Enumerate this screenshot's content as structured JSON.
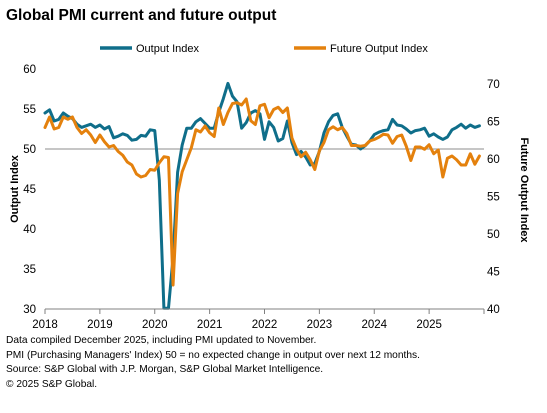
{
  "chart_data": {
    "type": "line",
    "title": "Global PMI current and future output",
    "ylabel": "Output Index",
    "y2label": "Future Output Index",
    "ylim": [
      30,
      60
    ],
    "y2lim": [
      40,
      72
    ],
    "yticks": [
      30,
      35,
      40,
      45,
      50,
      55,
      60
    ],
    "y2ticks": [
      40,
      45,
      50,
      55,
      60,
      65,
      70
    ],
    "xlim": [
      "2018-01",
      "2026-01"
    ],
    "xticks": [
      "2018",
      "2019",
      "2020",
      "2021",
      "2022",
      "2023",
      "2024",
      "2025"
    ],
    "reference_line": {
      "axis": "y",
      "value": 50
    },
    "grid": false,
    "legend": "top",
    "series": [
      {
        "name": "Output Index",
        "axis": "left",
        "color": "#0f6e8a",
        "x_start": "2018-01",
        "frequency": "monthly",
        "values": [
          54.5,
          54.9,
          53.5,
          53.7,
          54.5,
          54.1,
          53.8,
          53.1,
          52.7,
          52.9,
          53.1,
          52.7,
          53.0,
          52.5,
          52.8,
          51.4,
          51.6,
          51.9,
          51.7,
          51.1,
          51.2,
          51.7,
          51.6,
          52.4,
          52.3,
          46.1,
          30.1,
          30.1,
          36.4,
          47.1,
          50.5,
          52.6,
          52.6,
          53.4,
          53.8,
          53.2,
          52.6,
          52.6,
          54.6,
          56.3,
          58.2,
          56.6,
          55.9,
          52.6,
          53.3,
          54.5,
          54.8,
          54.4,
          51.2,
          53.4,
          52.7,
          51.0,
          51.3,
          53.5,
          50.8,
          49.3,
          49.7,
          49.0,
          48.0,
          48.2,
          49.7,
          52.0,
          53.4,
          54.2,
          54.4,
          52.7,
          51.6,
          50.6,
          50.5,
          50.0,
          50.4,
          51.0,
          51.8,
          52.1,
          52.3,
          52.4,
          53.7,
          53.0,
          52.9,
          52.5,
          52.0,
          52.3,
          52.4,
          52.6,
          51.6,
          51.9,
          51.5,
          51.2,
          51.5,
          52.4,
          52.7,
          53.1,
          52.6,
          53.0,
          52.7,
          52.9
        ]
      },
      {
        "name": "Future Output Index",
        "axis": "right",
        "color": "#e4810d",
        "x_start": "2018-01",
        "frequency": "monthly",
        "values": [
          64.2,
          65.6,
          64.0,
          64.2,
          65.6,
          65.3,
          65.6,
          64.2,
          63.4,
          63.9,
          63.2,
          62.2,
          63.2,
          62.3,
          61.6,
          61.8,
          61.0,
          60.5,
          59.6,
          59.2,
          58.0,
          57.6,
          57.8,
          58.6,
          58.5,
          59.5,
          60.3,
          60.2,
          43.2,
          55.4,
          58.3,
          59.9,
          61.5,
          63.9,
          63.6,
          64.4,
          63.5,
          63.0,
          66.8,
          64.6,
          66.2,
          67.4,
          67.5,
          67.2,
          68.0,
          65.1,
          64.6,
          67.1,
          67.3,
          65.5,
          66.6,
          66.9,
          66.2,
          66.8,
          62.8,
          61.3,
          60.3,
          60.9,
          59.9,
          58.6,
          61.1,
          62.2,
          63.9,
          64.3,
          63.9,
          64.2,
          63.4,
          61.8,
          61.8,
          61.7,
          61.8,
          62.4,
          62.6,
          62.9,
          63.3,
          63.2,
          62.1,
          63.0,
          63.2,
          61.7,
          59.8,
          61.6,
          61.6,
          61.3,
          61.9,
          60.7,
          61.2,
          57.6,
          60.1,
          60.4,
          59.9,
          59.2,
          59.2,
          60.7,
          59.3,
          60.4
        ]
      }
    ]
  },
  "notes": [
    "Data compiled December 2025, including PMI updated to November.",
    "PMI (Purchasing Managers' Index) 50 = no expected change in output over next 12 months.",
    "Source: S&P Global with J.P. Morgan, S&P Global Market Intelligence.",
    "© 2025 S&P Global."
  ]
}
